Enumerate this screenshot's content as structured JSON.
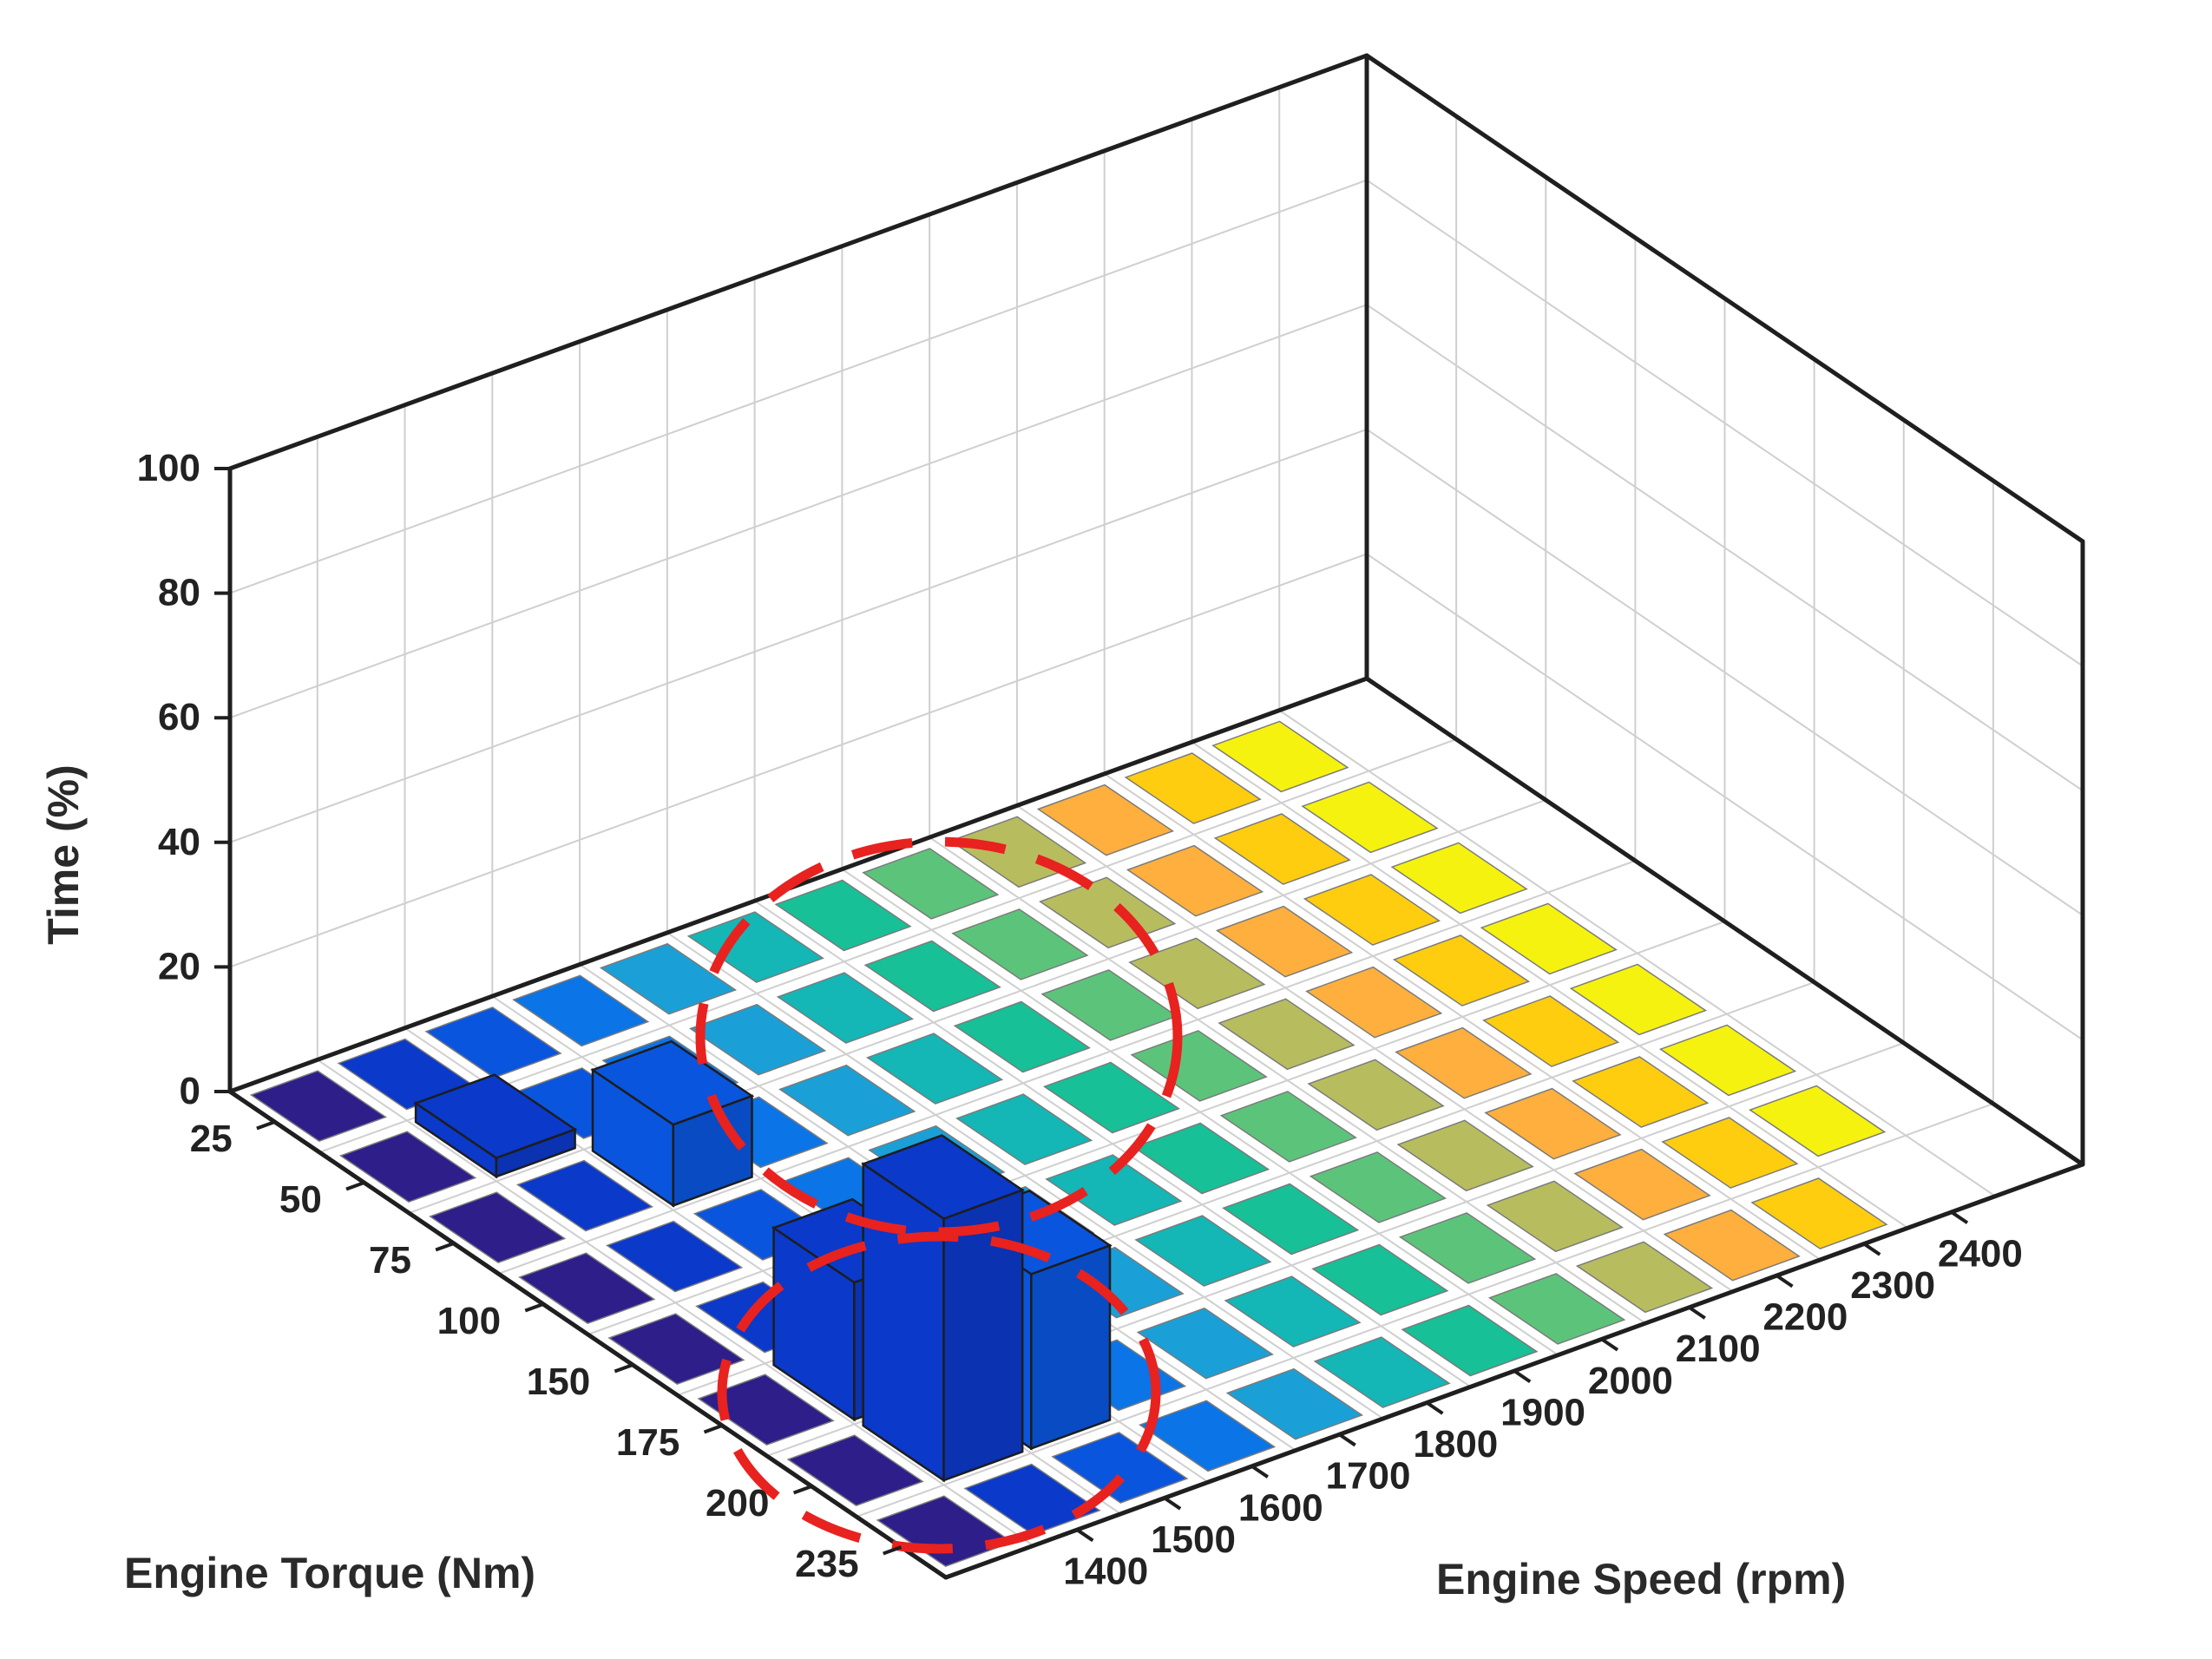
{
  "chart_data": {
    "type": "bar3d",
    "ylabel": "Time (%)",
    "torque_label": "Engine Torque (Nm)",
    "speed_label": "Engine Speed (rpm)",
    "zlim": [
      0,
      100
    ],
    "z_ticks": [
      "0",
      "20",
      "40",
      "60",
      "80",
      "100"
    ],
    "torque_categories": [
      "25",
      "50",
      "75",
      "100",
      "150",
      "175",
      "200",
      "235"
    ],
    "speed_categories": [
      "1400",
      "1500",
      "1600",
      "1700",
      "1800",
      "1900",
      "2000",
      "2100",
      "2200",
      "2300",
      "2400"
    ],
    "grid": true,
    "bars": [
      {
        "torque": "50",
        "speed": "1400",
        "value": 3
      },
      {
        "torque": "75",
        "speed": "1500",
        "value": 13
      },
      {
        "torque": "175",
        "speed": "1500",
        "value": 6
      },
      {
        "torque": "200",
        "speed": "1500",
        "value": 28
      },
      {
        "torque": "175",
        "speed": "1400",
        "value": 22
      },
      {
        "torque": "200",
        "speed": "1400",
        "value": 42
      }
    ],
    "annotations": [
      "dashed-ellipse-upper",
      "dashed-ellipse-lower"
    ],
    "colors": {
      "speed_ramp": [
        "#2d1e8a",
        "#0b39c9",
        "#0a55de",
        "#0b74e6",
        "#1aa0d6",
        "#14b6b6",
        "#17c096",
        "#5cc47a",
        "#b7bd5e",
        "#ffaf3d",
        "#ffcd10",
        "#f6f20f"
      ],
      "annotation": "#e8221f",
      "frame": "#1f1f1f"
    }
  }
}
